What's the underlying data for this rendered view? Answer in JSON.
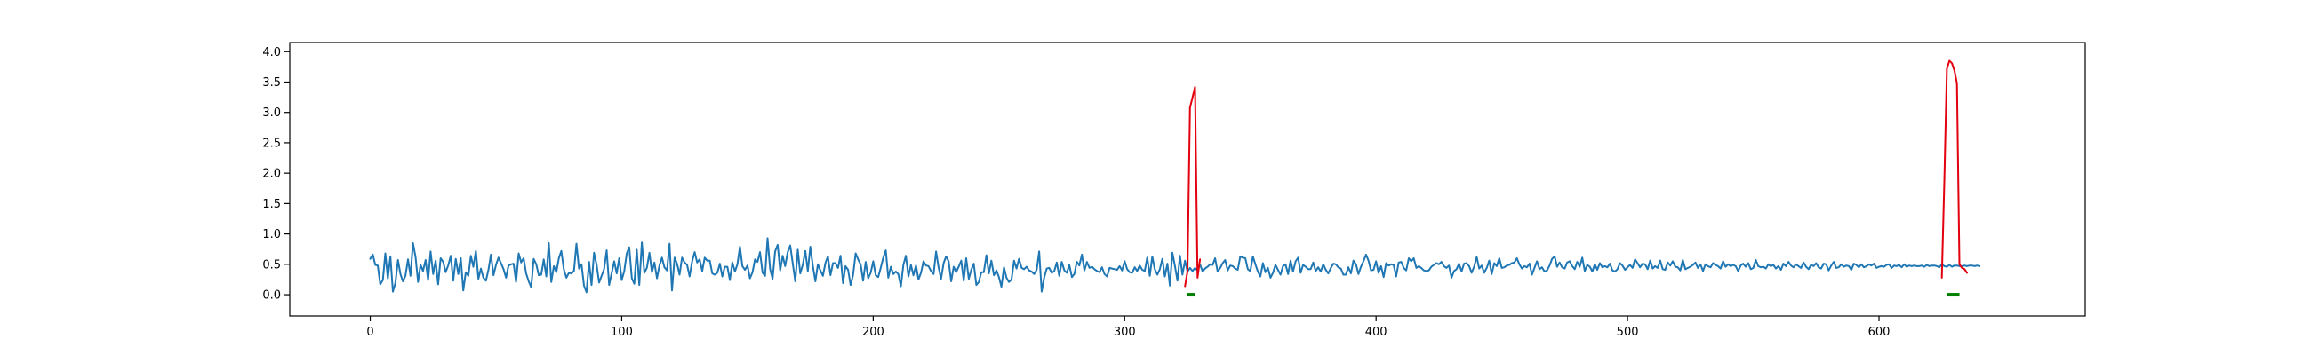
{
  "chart_data": {
    "type": "line",
    "title": "",
    "xlabel": "",
    "ylabel": "",
    "xlim": [
      -32,
      682
    ],
    "ylim": [
      -0.35,
      4.15
    ],
    "xticks": [
      0,
      100,
      200,
      300,
      400,
      500,
      600
    ],
    "xtick_labels": [
      "0",
      "100",
      "200",
      "300",
      "400",
      "500",
      "600"
    ],
    "yticks": [
      0.0,
      0.5,
      1.0,
      1.5,
      2.0,
      2.5,
      3.0,
      3.5,
      4.0
    ],
    "ytick_labels": [
      "0.0",
      "0.5",
      "1.0",
      "1.5",
      "2.0",
      "2.5",
      "3.0",
      "3.5",
      "4.0"
    ],
    "grid": false,
    "legend": "none",
    "series": [
      {
        "role": "signal",
        "color": "#1f77b4",
        "x_start": 0,
        "x_step": 1,
        "values": [
          0.59,
          0.66,
          0.49,
          0.48,
          0.17,
          0.24,
          0.68,
          0.27,
          0.63,
          0.05,
          0.19,
          0.57,
          0.34,
          0.22,
          0.31,
          0.58,
          0.31,
          0.85,
          0.62,
          0.21,
          0.49,
          0.39,
          0.57,
          0.24,
          0.71,
          0.34,
          0.56,
          0.17,
          0.6,
          0.54,
          0.37,
          0.48,
          0.64,
          0.23,
          0.59,
          0.34,
          0.6,
          0.07,
          0.37,
          0.31,
          0.64,
          0.46,
          0.72,
          0.26,
          0.43,
          0.28,
          0.23,
          0.41,
          0.66,
          0.32,
          0.49,
          0.61,
          0.52,
          0.42,
          0.28,
          0.48,
          0.5,
          0.51,
          0.21,
          0.68,
          0.53,
          0.6,
          0.35,
          0.22,
          0.12,
          0.59,
          0.5,
          0.32,
          0.33,
          0.58,
          0.3,
          0.85,
          0.21,
          0.47,
          0.37,
          0.6,
          0.72,
          0.41,
          0.28,
          0.36,
          0.35,
          0.39,
          0.84,
          0.43,
          0.5,
          0.15,
          0.04,
          0.54,
          0.16,
          0.69,
          0.49,
          0.2,
          0.31,
          0.42,
          0.73,
          0.16,
          0.35,
          0.55,
          0.35,
          0.6,
          0.24,
          0.39,
          0.68,
          0.78,
          0.27,
          0.18,
          0.74,
          0.16,
          0.86,
          0.36,
          0.44,
          0.69,
          0.37,
          0.53,
          0.27,
          0.48,
          0.61,
          0.45,
          0.4,
          0.84,
          0.07,
          0.61,
          0.51,
          0.33,
          0.61,
          0.53,
          0.49,
          0.3,
          0.55,
          0.7,
          0.53,
          0.58,
          0.39,
          0.61,
          0.56,
          0.56,
          0.35,
          0.33,
          0.36,
          0.51,
          0.3,
          0.46,
          0.46,
          0.24,
          0.53,
          0.38,
          0.5,
          0.79,
          0.47,
          0.41,
          0.48,
          0.27,
          0.37,
          0.58,
          0.54,
          0.7,
          0.36,
          0.31,
          0.93,
          0.42,
          0.26,
          0.71,
          0.82,
          0.4,
          0.64,
          0.47,
          0.7,
          0.81,
          0.52,
          0.22,
          0.74,
          0.35,
          0.49,
          0.72,
          0.39,
          0.79,
          0.47,
          0.22,
          0.5,
          0.4,
          0.31,
          0.52,
          0.63,
          0.32,
          0.52,
          0.52,
          0.44,
          0.64,
          0.19,
          0.47,
          0.41,
          0.16,
          0.32,
          0.68,
          0.58,
          0.5,
          0.23,
          0.54,
          0.27,
          0.36,
          0.55,
          0.32,
          0.29,
          0.44,
          0.61,
          0.73,
          0.28,
          0.46,
          0.34,
          0.38,
          0.34,
          0.14,
          0.49,
          0.64,
          0.3,
          0.49,
          0.32,
          0.48,
          0.25,
          0.36,
          0.55,
          0.48,
          0.47,
          0.39,
          0.34,
          0.71,
          0.45,
          0.26,
          0.52,
          0.63,
          0.55,
          0.22,
          0.46,
          0.37,
          0.46,
          0.56,
          0.23,
          0.6,
          0.26,
          0.41,
          0.51,
          0.16,
          0.21,
          0.37,
          0.37,
          0.65,
          0.35,
          0.56,
          0.32,
          0.4,
          0.29,
          0.13,
          0.45,
          0.28,
          0.21,
          0.25,
          0.56,
          0.43,
          0.59,
          0.44,
          0.42,
          0.46,
          0.4,
          0.38,
          0.34,
          0.41,
          0.71,
          0.05,
          0.28,
          0.43,
          0.44,
          0.36,
          0.39,
          0.53,
          0.31,
          0.54,
          0.4,
          0.36,
          0.49,
          0.29,
          0.34,
          0.54,
          0.48,
          0.66,
          0.4,
          0.54,
          0.44,
          0.46,
          0.42,
          0.39,
          0.37,
          0.45,
          0.34,
          0.3,
          0.44,
          0.43,
          0.42,
          0.41,
          0.47,
          0.4,
          0.55,
          0.42,
          0.37,
          0.36,
          0.45,
          0.39,
          0.48,
          0.41,
          0.39,
          0.61,
          0.31,
          0.63,
          0.42,
          0.33,
          0.42,
          0.59,
          0.3,
          0.51,
          0.15,
          0.69,
          0.47,
          0.23,
          0.64,
          0.33,
          0.56,
          0.38,
          0.44,
          0.39,
          0.44,
          0.4,
          0.5,
          0.38,
          0.43,
          0.46,
          0.5,
          0.49,
          0.6,
          0.38,
          0.44,
          0.52,
          0.57,
          0.4,
          0.48,
          0.47,
          0.43,
          0.41,
          0.63,
          0.61,
          0.6,
          0.42,
          0.39,
          0.63,
          0.5,
          0.38,
          0.3,
          0.52,
          0.37,
          0.44,
          0.28,
          0.36,
          0.49,
          0.41,
          0.33,
          0.47,
          0.5,
          0.34,
          0.56,
          0.38,
          0.55,
          0.61,
          0.36,
          0.49,
          0.46,
          0.42,
          0.42,
          0.53,
          0.39,
          0.45,
          0.38,
          0.5,
          0.41,
          0.35,
          0.44,
          0.51,
          0.5,
          0.45,
          0.43,
          0.33,
          0.33,
          0.45,
          0.35,
          0.56,
          0.5,
          0.34,
          0.46,
          0.55,
          0.66,
          0.56,
          0.4,
          0.41,
          0.55,
          0.36,
          0.47,
          0.29,
          0.52,
          0.48,
          0.5,
          0.49,
          0.3,
          0.53,
          0.54,
          0.44,
          0.4,
          0.6,
          0.55,
          0.6,
          0.44,
          0.47,
          0.44,
          0.4,
          0.39,
          0.4,
          0.46,
          0.49,
          0.52,
          0.5,
          0.54,
          0.47,
          0.44,
          0.48,
          0.28,
          0.39,
          0.42,
          0.51,
          0.38,
          0.51,
          0.52,
          0.47,
          0.36,
          0.46,
          0.62,
          0.43,
          0.48,
          0.36,
          0.44,
          0.56,
          0.34,
          0.52,
          0.47,
          0.6,
          0.44,
          0.45,
          0.48,
          0.49,
          0.52,
          0.53,
          0.6,
          0.5,
          0.43,
          0.47,
          0.45,
          0.51,
          0.33,
          0.44,
          0.55,
          0.42,
          0.45,
          0.38,
          0.4,
          0.48,
          0.59,
          0.63,
          0.46,
          0.53,
          0.45,
          0.43,
          0.53,
          0.55,
          0.47,
          0.42,
          0.54,
          0.46,
          0.61,
          0.39,
          0.49,
          0.46,
          0.38,
          0.5,
          0.41,
          0.52,
          0.45,
          0.47,
          0.45,
          0.51,
          0.4,
          0.38,
          0.42,
          0.52,
          0.48,
          0.41,
          0.45,
          0.49,
          0.44,
          0.58,
          0.52,
          0.45,
          0.51,
          0.5,
          0.42,
          0.56,
          0.43,
          0.47,
          0.44,
          0.56,
          0.42,
          0.41,
          0.53,
          0.48,
          0.55,
          0.46,
          0.45,
          0.4,
          0.57,
          0.42,
          0.44,
          0.46,
          0.49,
          0.53,
          0.44,
          0.5,
          0.39,
          0.5,
          0.47,
          0.45,
          0.52,
          0.49,
          0.47,
          0.43,
          0.55,
          0.46,
          0.5,
          0.47,
          0.49,
          0.47,
          0.39,
          0.48,
          0.51,
          0.46,
          0.52,
          0.42,
          0.44,
          0.57,
          0.47,
          0.45,
          0.46,
          0.43,
          0.5,
          0.47,
          0.49,
          0.43,
          0.47,
          0.41,
          0.51,
          0.47,
          0.54,
          0.48,
          0.45,
          0.5,
          0.47,
          0.44,
          0.53,
          0.46,
          0.42,
          0.49,
          0.47,
          0.52,
          0.45,
          0.43,
          0.51,
          0.5,
          0.4,
          0.48,
          0.54,
          0.44,
          0.45,
          0.5,
          0.46,
          0.48,
          0.47,
          0.41,
          0.51,
          0.49,
          0.45,
          0.5,
          0.45,
          0.47,
          0.5,
          0.48,
          0.51,
          0.44,
          0.46,
          0.47,
          0.46,
          0.49,
          0.5,
          0.44,
          0.48,
          0.47,
          0.49,
          0.45,
          0.5,
          0.46,
          0.48,
          0.47,
          0.48,
          0.47,
          0.47,
          0.48,
          0.46,
          0.49,
          0.47,
          0.48,
          0.48,
          0.47,
          0.45,
          0.5,
          0.47,
          0.46,
          0.49,
          0.46,
          0.48,
          0.48,
          0.47,
          0.47,
          0.48,
          0.47,
          0.48,
          0.48,
          0.47,
          0.48,
          0.47
        ]
      },
      {
        "role": "anomaly-1",
        "color": "#e3000f",
        "x": [
          324,
          325,
          326,
          327,
          328,
          329,
          330
        ],
        "values": [
          0.14,
          0.38,
          3.08,
          3.25,
          3.42,
          0.28,
          0.58
        ]
      },
      {
        "role": "anomaly-2",
        "color": "#e3000f",
        "x": [
          625,
          626,
          627,
          628,
          629,
          630,
          631,
          632,
          633,
          634,
          635
        ],
        "values": [
          0.28,
          1.92,
          3.72,
          3.85,
          3.81,
          3.69,
          3.48,
          0.5,
          0.44,
          0.42,
          0.36
        ]
      }
    ],
    "markers": [
      {
        "role": "anomaly-window-1",
        "color": "#008000",
        "x_start": 325,
        "x_end": 328,
        "y": 0.0
      },
      {
        "role": "anomaly-window-2",
        "color": "#008000",
        "x_start": 627,
        "x_end": 632,
        "y": 0.0
      }
    ]
  }
}
